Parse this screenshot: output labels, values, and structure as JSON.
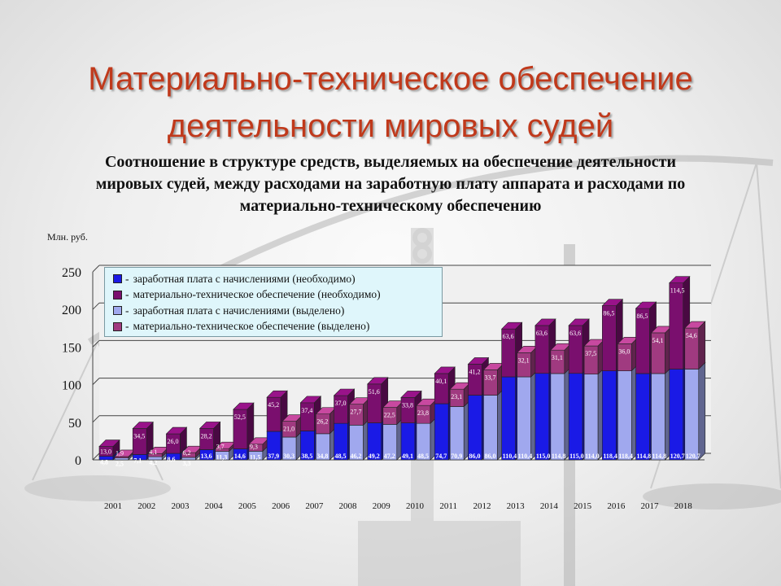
{
  "title_line1": "Материально-техническое обеспечение",
  "title_line2": "деятельности мировых судей",
  "subtitle_line1": "Соотношение в структуре средств, выделяемых на обеспечение деятельности",
  "subtitle_line2": "мировых судей, между расходами на заработную плату аппарата и расходами по",
  "subtitle_line3": "материально-техническому обеспечению",
  "chart_data": {
    "type": "bar",
    "ylabel": "Млн. руб.",
    "ylim": [
      0,
      250
    ],
    "yticks": [
      "0",
      "50",
      "100",
      "150",
      "200",
      "250"
    ],
    "grid": true,
    "legend_position": "top-left",
    "categories": [
      "2001",
      "2002",
      "2003",
      "2004",
      "2005",
      "2006",
      "2007",
      "2008",
      "2009",
      "2010",
      "2011",
      "2012",
      "2013",
      "2014",
      "2015",
      "2016",
      "2017",
      "2018"
    ],
    "stacks": [
      {
        "name": "необходимо",
        "series": [
          {
            "name": "заработная плата с начислениями (необходимо)",
            "color": "#1a1ae6",
            "values": [
              4.8,
              7.1,
              8.6,
              13.6,
              14.6,
              37.9,
              38.5,
              48.5,
              49.2,
              49.1,
              74.7,
              86.0,
              110.4,
              115.0,
              115.0,
              118.4,
              114.8,
              120.7
            ],
            "labels": [
              "4,8",
              "7,1",
              "8,6",
              "13,6",
              "14,6",
              "37,9",
              "38,5",
              "48,5",
              "49,2",
              "49,1",
              "74,7",
              "86,0",
              "110,4",
              "115,0",
              "115,0",
              "118,4",
              "114,8",
              "120,7"
            ]
          },
          {
            "name": "материально-техническое обеспечение (необходимо)",
            "color": "#7a0f6e",
            "values": [
              13.0,
              34.5,
              26.0,
              28.2,
              52.5,
              45.2,
              37.4,
              37.0,
              51.6,
              33.8,
              40.1,
              41.2,
              63.6,
              63.6,
              63.6,
              86.5,
              86.5,
              114.5
            ],
            "labels": [
              "13,0",
              "34,5",
              "26,0",
              "28,2",
              "52,5",
              "45,2",
              "37,4",
              "37,0",
              "51,6",
              "33,8",
              "40,1",
              "41,2",
              "63,6",
              "63,6",
              "63,6",
              "86,5",
              "86,5",
              "114,5"
            ]
          }
        ]
      },
      {
        "name": "выделено",
        "series": [
          {
            "name": "заработная плата с начислениями (выделено)",
            "color": "#a0a8ee",
            "values": [
              2.5,
              4.2,
              3.3,
              11.3,
              11.5,
              30.3,
              34.8,
              46.2,
              47.2,
              48.5,
              70.9,
              86.0,
              110.4,
              114.8,
              114.0,
              118.4,
              114.8,
              120.7
            ],
            "labels": [
              "2,5",
              "4,2",
              "3,3",
              "11,3",
              "11,5",
              "30,3",
              "34,8",
              "46,2",
              "47,2",
              "48,5",
              "70,9",
              "86,0",
              "110,4",
              "114,8",
              "114,0",
              "118,4",
              "114,8",
              "120,7"
            ]
          },
          {
            "name": "материально-техническое обеспечение (выделено)",
            "color": "#a03a80",
            "values": [
              1.9,
              4.1,
              6.2,
              3.7,
              9.3,
              21.0,
              26.2,
              27.7,
              22.5,
              23.8,
              23.1,
              33.7,
              32.1,
              31.1,
              37.5,
              36.0,
              54.1,
              54.6
            ],
            "labels": [
              "1,9",
              "4,1",
              "6,2",
              "3,7",
              "9,3",
              "21,0",
              "26,2",
              "27,7",
              "22,5",
              "23,8",
              "23,1",
              "33,7",
              "32,1",
              "31,1",
              "37,5",
              "36,0",
              "54,1",
              "54,6"
            ]
          }
        ]
      }
    ]
  }
}
